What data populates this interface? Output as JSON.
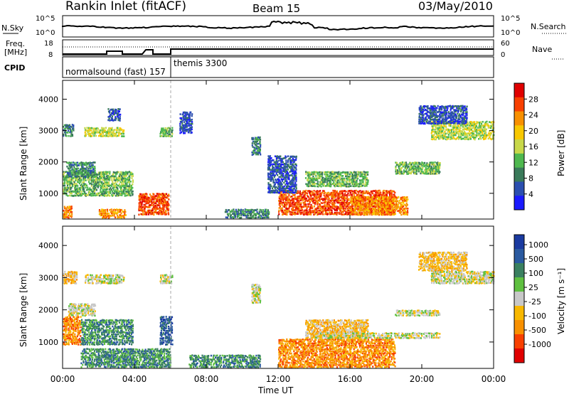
{
  "header": {
    "station": "Rankin Inlet (fitACF)",
    "beam": "Beam 15",
    "date": "03/May/2010"
  },
  "panels": {
    "nsky": {
      "left_label": "N.Sky",
      "right_label": "N.Search",
      "left_ticks": [
        "10^5",
        "10^0"
      ],
      "right_ticks": [
        "10^5",
        "10^0"
      ]
    },
    "freq": {
      "left_label_1": "Freq.",
      "left_label_2": "[MHz]",
      "right_label": "Nave",
      "left_ticks": [
        "18",
        "8"
      ],
      "right_ticks": [
        "60",
        "0"
      ]
    },
    "cpid": {
      "label": "CPID",
      "modes": [
        "normalsound (fast) 157",
        "themis 3300"
      ]
    }
  },
  "colors": {
    "power": [
      "#1a1aff",
      "#2b4fb0",
      "#3a7a5a",
      "#4fb84f",
      "#c8d84a",
      "#f8c800",
      "#f89000",
      "#f84000",
      "#e00000"
    ],
    "velocity": [
      "#e00000",
      "#f84000",
      "#f89000",
      "#f8b800",
      "#c8c8c8",
      "#5fc040",
      "#3a8060",
      "#2a5aa0",
      "#1a3aa0"
    ]
  },
  "chart_data": [
    {
      "type": "heatmap",
      "quantity": "power",
      "xlabel": "Time UT",
      "ylabel": "Slant Range [km]",
      "ylim": [
        180,
        4600
      ],
      "xlim": [
        0,
        24
      ],
      "yticks": [
        "1000",
        "2000",
        "3000",
        "4000"
      ],
      "xticks": [
        "00:00",
        "04:00",
        "08:00",
        "12:00",
        "16:00",
        "20:00",
        "00:00"
      ],
      "colorbar": {
        "label": "Power [dB]",
        "ticks": [
          "4",
          "8",
          "12",
          "16",
          "20",
          "24",
          "28"
        ]
      },
      "regions": [
        {
          "t": [
            0.0,
            3.9
          ],
          "r": [
            900,
            1700
          ],
          "level": 3
        },
        {
          "t": [
            0.2,
            1.8
          ],
          "r": [
            1500,
            2000
          ],
          "level": 2
        },
        {
          "t": [
            0.0,
            0.6
          ],
          "r": [
            2800,
            3200
          ],
          "level": 2
        },
        {
          "t": [
            1.2,
            3.4
          ],
          "r": [
            2800,
            3100
          ],
          "level": 4
        },
        {
          "t": [
            2.5,
            3.2
          ],
          "r": [
            3300,
            3700
          ],
          "level": 1
        },
        {
          "t": [
            5.4,
            6.1
          ],
          "r": [
            2800,
            3100
          ],
          "level": 3
        },
        {
          "t": [
            4.2,
            5.9
          ],
          "r": [
            300,
            1000
          ],
          "level": 7
        },
        {
          "t": [
            0.0,
            0.5
          ],
          "r": [
            200,
            600
          ],
          "level": 6
        },
        {
          "t": [
            2.0,
            3.5
          ],
          "r": [
            200,
            500
          ],
          "level": 6
        },
        {
          "t": [
            6.5,
            7.2
          ],
          "r": [
            2900,
            3600
          ],
          "level": 1
        },
        {
          "t": [
            10.5,
            11.0
          ],
          "r": [
            2200,
            2800
          ],
          "level": 2
        },
        {
          "t": [
            12.0,
            18.5
          ],
          "r": [
            300,
            1100
          ],
          "level": 7
        },
        {
          "t": [
            11.4,
            13.0
          ],
          "r": [
            1000,
            2200
          ],
          "level": 1
        },
        {
          "t": [
            13.5,
            17.0
          ],
          "r": [
            1200,
            1700
          ],
          "level": 3
        },
        {
          "t": [
            16.0,
            19.2
          ],
          "r": [
            300,
            900
          ],
          "level": 6
        },
        {
          "t": [
            18.5,
            21.0
          ],
          "r": [
            1600,
            2000
          ],
          "level": 3
        },
        {
          "t": [
            20.5,
            24.0
          ],
          "r": [
            2700,
            3300
          ],
          "level": 4
        },
        {
          "t": [
            19.8,
            22.5
          ],
          "r": [
            3200,
            3800
          ],
          "level": 1
        },
        {
          "t": [
            9.0,
            11.5
          ],
          "r": [
            200,
            500
          ],
          "level": 2
        }
      ]
    },
    {
      "type": "heatmap",
      "quantity": "velocity",
      "xlabel": "Time UT",
      "ylabel": "Slant Range [km]",
      "ylim": [
        180,
        4600
      ],
      "xlim": [
        0,
        24
      ],
      "yticks": [
        "1000",
        "2000",
        "3000",
        "4000"
      ],
      "xticks": [
        "00:00",
        "04:00",
        "08:00",
        "12:00",
        "16:00",
        "20:00",
        "00:00"
      ],
      "colorbar": {
        "label": "Velocity [m s⁻¹]",
        "ticks": [
          "1000",
          "500",
          "100",
          "25",
          "-25",
          "-100",
          "-500",
          "-1000"
        ]
      },
      "regions": [
        {
          "t": [
            0.0,
            1.0
          ],
          "r": [
            900,
            1800
          ],
          "level": 2
        },
        {
          "t": [
            1.0,
            3.9
          ],
          "r": [
            900,
            1700
          ],
          "level": 6
        },
        {
          "t": [
            5.4,
            6.1
          ],
          "r": [
            900,
            1800
          ],
          "level": 7
        },
        {
          "t": [
            1.2,
            3.4
          ],
          "r": [
            2800,
            3100
          ],
          "level": 4
        },
        {
          "t": [
            5.4,
            6.1
          ],
          "r": [
            2800,
            3100
          ],
          "level": 4
        },
        {
          "t": [
            0.3,
            1.8
          ],
          "r": [
            1800,
            2200
          ],
          "level": 4
        },
        {
          "t": [
            1.0,
            6.0
          ],
          "r": [
            200,
            800
          ],
          "level": 6
        },
        {
          "t": [
            7.0,
            11.0
          ],
          "r": [
            200,
            600
          ],
          "level": 6
        },
        {
          "t": [
            10.5,
            11.0
          ],
          "r": [
            2200,
            2800
          ],
          "level": 4
        },
        {
          "t": [
            12.0,
            18.5
          ],
          "r": [
            200,
            1100
          ],
          "level": 2
        },
        {
          "t": [
            13.5,
            17.0
          ],
          "r": [
            1100,
            1700
          ],
          "level": 3
        },
        {
          "t": [
            14.0,
            21.0
          ],
          "r": [
            1100,
            1300
          ],
          "level": 4
        },
        {
          "t": [
            18.5,
            21.0
          ],
          "r": [
            1800,
            2000
          ],
          "level": 4
        },
        {
          "t": [
            20.5,
            24.0
          ],
          "r": [
            2800,
            3200
          ],
          "level": 4
        },
        {
          "t": [
            19.8,
            22.5
          ],
          "r": [
            3200,
            3800
          ],
          "level": 3
        },
        {
          "t": [
            0.0,
            0.8
          ],
          "r": [
            2800,
            3200
          ],
          "level": 3
        }
      ]
    }
  ]
}
